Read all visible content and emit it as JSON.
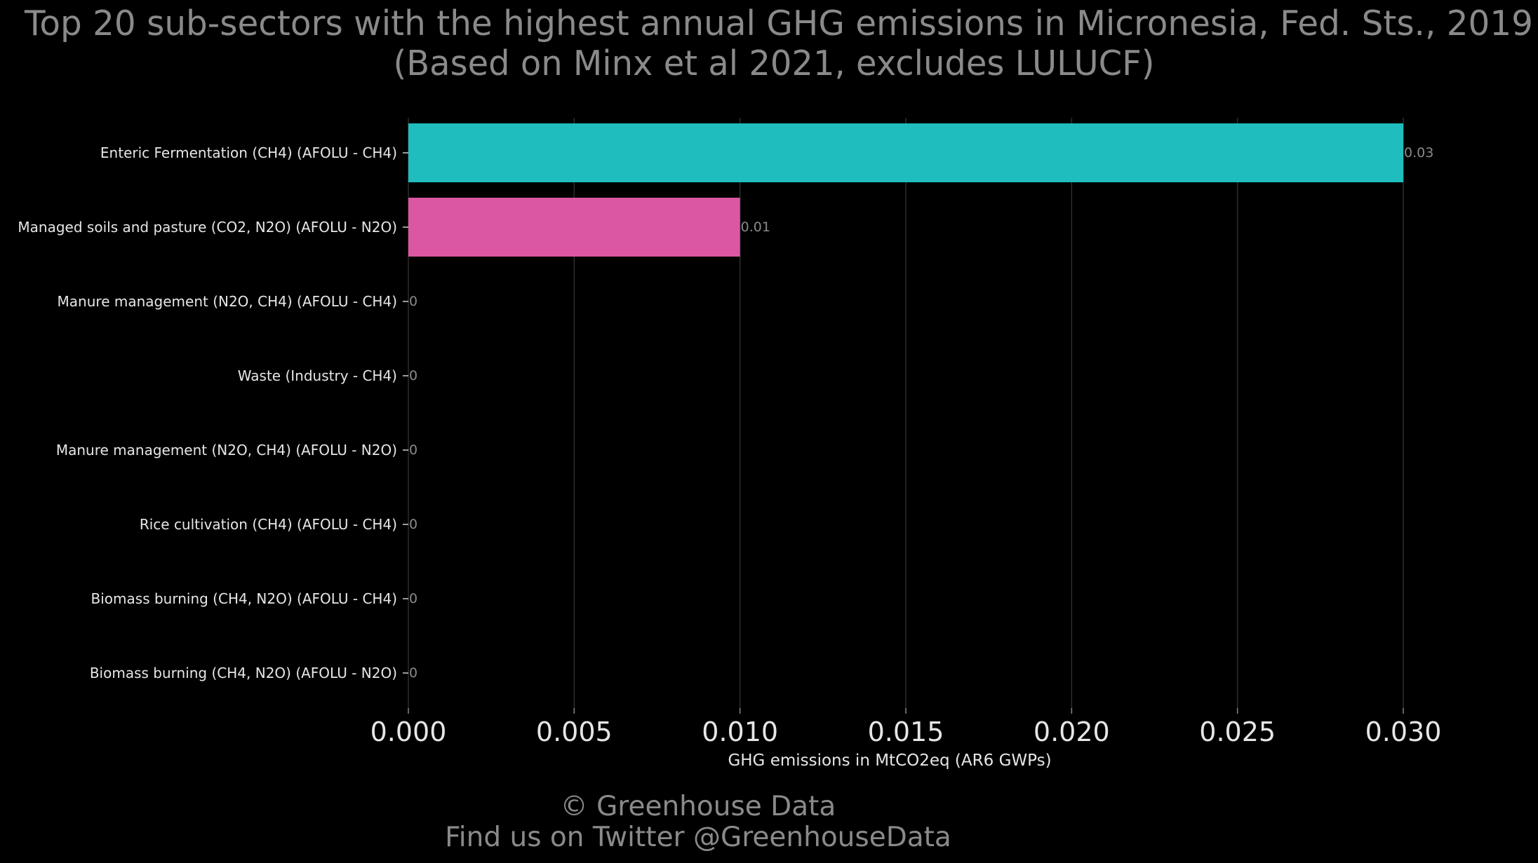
{
  "chart_data": {
    "type": "bar",
    "orientation": "horizontal",
    "title": "Top 20 sub-sectors with the highest annual GHG emissions in Micronesia, Fed. Sts., 2019",
    "subtitle": "(Based on Minx et al 2021, excludes LULUCF)",
    "categories": [
      "Enteric Fermentation (CH4) (AFOLU - CH4)",
      "Managed soils and pasture (CO2, N2O) (AFOLU - N2O)",
      "Manure management (N2O, CH4) (AFOLU - CH4)",
      "Waste (Industry - CH4)",
      "Manure management (N2O, CH4) (AFOLU - N2O)",
      "Rice cultivation (CH4) (AFOLU - CH4)",
      "Biomass burning (CH4, N2O) (AFOLU - CH4)",
      "Biomass burning (CH4, N2O) (AFOLU - N2O)"
    ],
    "values": [
      0.03,
      0.01,
      0,
      0,
      0,
      0,
      0,
      0
    ],
    "value_labels": [
      "0.03",
      "0.01",
      "0",
      "0",
      "0",
      "0",
      "0",
      "0"
    ],
    "colors": [
      "#1fbdbd",
      "#dc57a3",
      "#1fbdbd",
      "#1fbdbd",
      "#1fbdbd",
      "#1fbdbd",
      "#1fbdbd",
      "#1fbdbd"
    ],
    "xlabel": "GHG emissions in MtCO2eq (AR6 GWPs)",
    "ylabel": "",
    "xlim": [
      0,
      0.03
    ],
    "xticks": [
      0,
      0.005,
      0.01,
      0.015,
      0.02,
      0.025,
      0.03
    ],
    "xtick_labels": [
      "0.000",
      "0.005",
      "0.010",
      "0.015",
      "0.020",
      "0.025",
      "0.030"
    ],
    "grid": true,
    "background": "#000000"
  },
  "footer": {
    "line1": "© Greenhouse Data",
    "line2": "Find us on Twitter @GreenhouseData"
  }
}
